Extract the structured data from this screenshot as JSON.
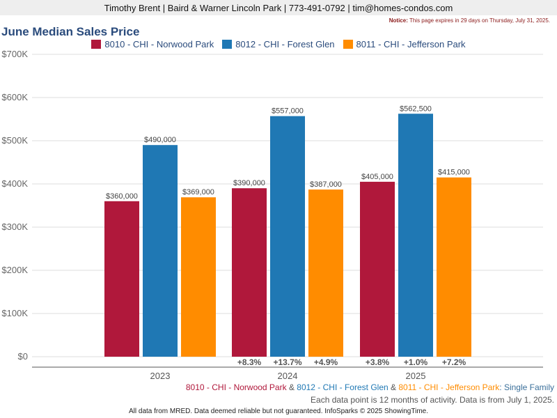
{
  "header": {
    "contact": "Timothy Brent | Baird & Warner Lincoln Park | 773-491-0792 | tim@homes-condos.com",
    "notice_label": "Notice:",
    "notice_text": "This page expires in 29 days on Thursday, July 31, 2025."
  },
  "chart_data": {
    "type": "bar",
    "title": "June Median Sales Price",
    "categories": [
      "2023",
      "2024",
      "2025"
    ],
    "series": [
      {
        "name": "8010 - CHI - Norwood Park",
        "color": "#b0183b",
        "values": [
          360000,
          390000,
          405000
        ],
        "data_labels": [
          "$360,000",
          "$390,000",
          "$405,000"
        ],
        "changes": [
          "",
          "+8.3%",
          "+3.8%"
        ]
      },
      {
        "name": "8012 - CHI - Forest Glen",
        "color": "#1f78b4",
        "values": [
          490000,
          557000,
          562500
        ],
        "data_labels": [
          "$490,000",
          "$557,000",
          "$562,500"
        ],
        "changes": [
          "",
          "+13.7%",
          "+1.0%"
        ]
      },
      {
        "name": "8011 - CHI - Jefferson Park",
        "color": "#ff8c00",
        "values": [
          369000,
          387000,
          415000
        ],
        "data_labels": [
          "$369,000",
          "$387,000",
          "$415,000"
        ],
        "changes": [
          "",
          "+4.9%",
          "+7.2%"
        ]
      }
    ],
    "ylim": [
      0,
      700000
    ],
    "yticks": [
      0,
      100000,
      200000,
      300000,
      400000,
      500000,
      600000,
      700000
    ],
    "ytick_labels": [
      "$0",
      "$100K",
      "$200K",
      "$300K",
      "$400K",
      "$500K",
      "$600K",
      "$700K"
    ],
    "grid": true,
    "legend_position": "top"
  },
  "footer": {
    "series_line": {
      "s1": "8010 - CHI - Norwood Park",
      "amp1": " & ",
      "s2": "8012 - CHI - Forest Glen",
      "amp2": " & ",
      "s3": "8011 - CHI - Jefferson Park",
      "suffix": ": Single Family"
    },
    "activity_note": "Each data point is 12 months of activity. Data is from July 1, 2025.",
    "disclaimer": "All data from MRED. Data deemed reliable but not guaranteed. InfoSparks © 2025 ShowingTime."
  }
}
